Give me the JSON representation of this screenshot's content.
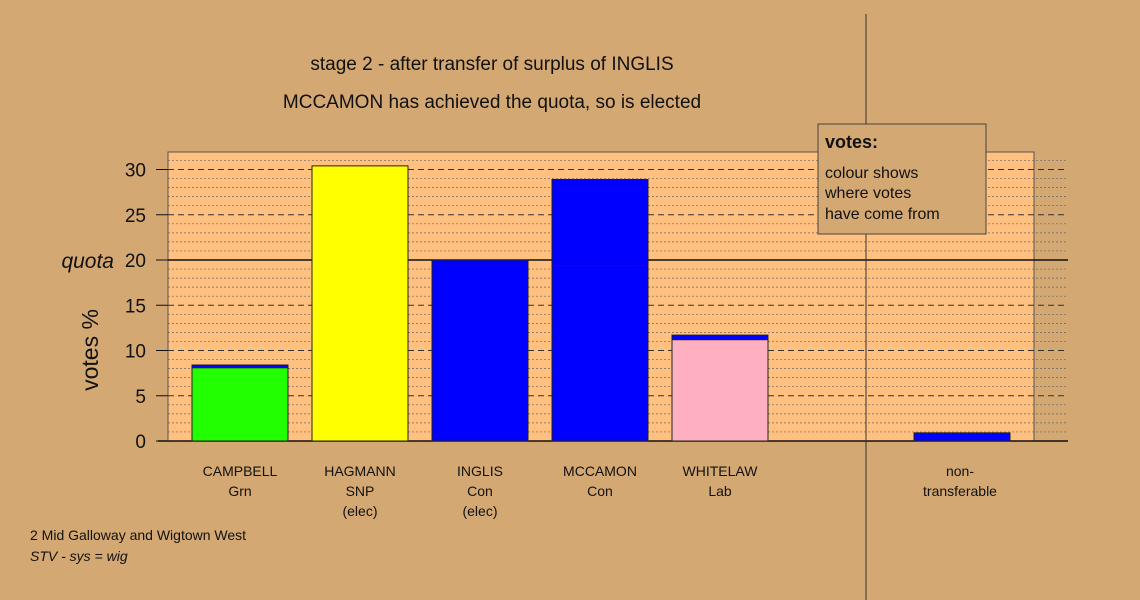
{
  "chart_data": {
    "type": "bar",
    "title": "stage 2 - after transfer of surplus of INGLIS",
    "subtitle": "MCCAMON has achieved the quota, so is elected",
    "ylabel": "votes %",
    "ylim": [
      0,
      32
    ],
    "yticks": [
      0,
      5,
      10,
      15,
      20,
      25,
      30
    ],
    "quota": {
      "label": "quota",
      "value": 20
    },
    "categories": [
      {
        "lines": [
          "CAMPBELL",
          "Grn"
        ],
        "color": "#22ff00",
        "base": 8.1,
        "transfer": 0.3
      },
      {
        "lines": [
          "HAGMANN",
          "SNP",
          "(elec)"
        ],
        "color": "#ffff00",
        "base": 30.4,
        "transfer": 0
      },
      {
        "lines": [
          "INGLIS",
          "Con",
          "(elec)"
        ],
        "color": "#0000ff",
        "base": 20.0,
        "transfer": 0
      },
      {
        "lines": [
          "MCCAMON",
          "Con"
        ],
        "color": "#0000ff",
        "base": 19.4,
        "transfer": 9.5
      },
      {
        "lines": [
          "WHITELAW",
          "Lab"
        ],
        "color": "#ffb0c0",
        "base": 11.2,
        "transfer": 0.5
      }
    ],
    "nontransferable": {
      "lines": [
        "non-",
        "transferable"
      ],
      "value": 0.9
    },
    "transfer_color": "#0000ff"
  },
  "legend": {
    "title": "votes:",
    "lines": [
      "colour shows",
      "where votes",
      "have come from"
    ]
  },
  "footer": {
    "line1": "2 Mid Galloway and Wigtown West",
    "line2": "STV - sys = wig"
  }
}
